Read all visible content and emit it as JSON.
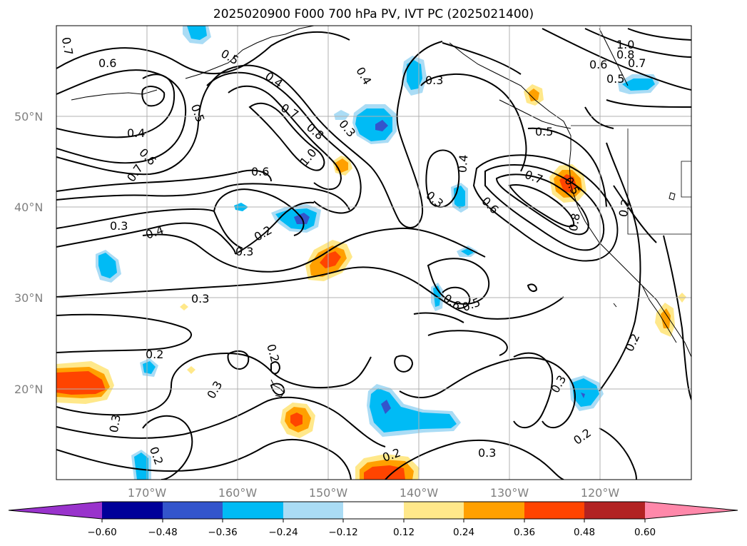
{
  "title": "2025020900 F000 700 hPa PV, IVT PC (2025021400)",
  "map": {
    "lat_labels": [
      "50°N",
      "40°N",
      "30°N",
      "20°N"
    ],
    "lon_labels": [
      "170°W",
      "160°W",
      "150°W",
      "140°W",
      "130°W",
      "120°W"
    ],
    "colors": {
      "gridline": "#b0b0b0",
      "frame": "#000000",
      "contour": "#000000"
    }
  },
  "colorbar": {
    "tick_labels": [
      "−0.60",
      "−0.48",
      "−0.36",
      "−0.24",
      "−0.12",
      "0.12",
      "0.24",
      "0.36",
      "0.48",
      "0.60"
    ],
    "colors": [
      "#9933cc",
      "#000099",
      "#3355cc",
      "#00bbf5",
      "#aadcf5",
      "#ffffff",
      "#ffe88a",
      "#ffa000",
      "#ff4400",
      "#b22222",
      "#ff88aa"
    ]
  },
  "contour_labels": [
    "0.7",
    "0.6",
    "0.5",
    "0.4",
    "0.5",
    "0.3",
    "0.4",
    "0.7",
    "0.8",
    "1.0",
    "0.6",
    "0.7",
    "0.6",
    "0.4",
    "0.3",
    "0.4",
    "0.2",
    "0.3",
    "0.3",
    "0.2",
    "0.2",
    "0.3",
    "0.3",
    "0.2",
    "0.2",
    "0.3",
    "0.4",
    "0.3",
    "0.6",
    "0.7",
    "0.5",
    "0.8",
    "0.5",
    "0.2",
    "0.6",
    "0.5",
    "0.2",
    "0.3",
    "0.2",
    "0.3",
    "1.0",
    "0.8",
    "0.7",
    "0.6",
    "0.5"
  ]
}
